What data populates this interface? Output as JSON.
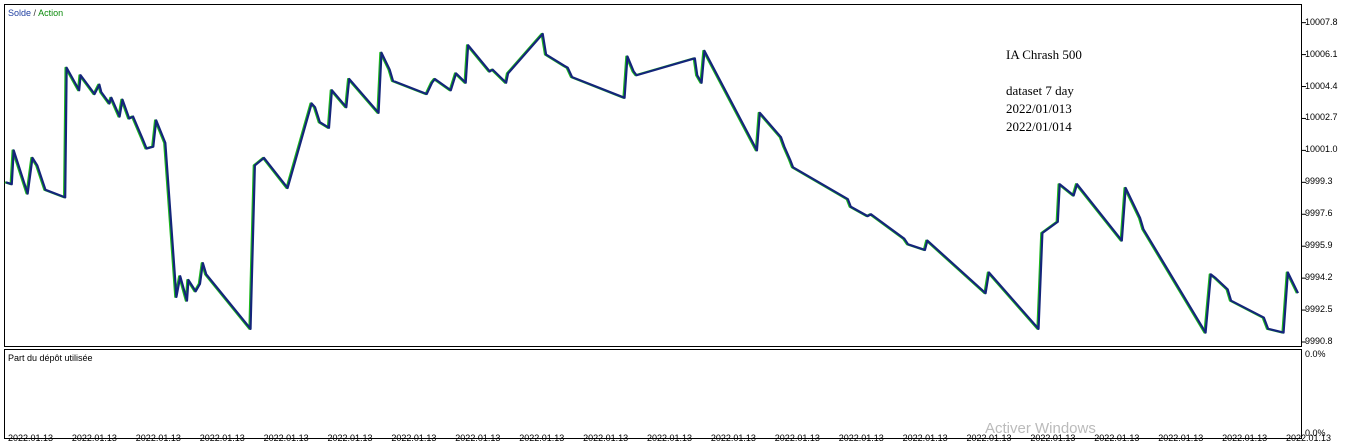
{
  "legend": {
    "series1": "Solde",
    "separator": "/",
    "series2": "Action"
  },
  "subpanel_label": "Part du dépôt utilisée",
  "annotations": [
    "IA Chrash 500",
    "dataset 7 day",
    "2022/01/013",
    "2022/01/014"
  ],
  "watermark": "Activer Windows",
  "colors": {
    "solde": "#14257a",
    "action": "#1db81d"
  },
  "chart_data": [
    {
      "type": "line",
      "title": "",
      "xlabel": "",
      "ylabel": "",
      "ylim": [
        9990.8,
        10008.5
      ],
      "y_ticks": [
        "10007.8",
        "10006.1",
        "10004.4",
        "10002.7",
        "10001.0",
        "9999.3",
        "9997.6",
        "9995.9",
        "9994.2",
        "9992.5",
        "9990.8"
      ],
      "x_ticks": [
        "2022.01.13",
        "2022.01.13",
        "2022.01.13",
        "2022.01.13",
        "2022.01.13",
        "2022.01.13",
        "2022.01.13",
        "2022.01.13",
        "2022.01.13",
        "2022.01.13",
        "2022.01.13",
        "2022.01.13",
        "2022.01.13",
        "2022.01.13",
        "2022.01.13",
        "2022.01.13",
        "2022.01.13",
        "2022.01.13",
        "2022.01.13",
        "2022.01.13",
        "2022.01.13"
      ],
      "legend": "top-left",
      "series": [
        {
          "name": "Solde",
          "x": [
            0,
            1.2,
            1.6,
            4.5,
            5.5,
            6.5,
            8.2,
            12.3,
            12.6,
            15.2,
            15.5,
            18.4,
            19.4,
            19.8,
            21.5,
            21.9,
            23.6,
            24.2,
            25.6,
            26.4,
            28.4,
            29.2,
            30.6,
            31.2,
            33.1,
            35.4,
            36.2,
            37.6,
            37.9,
            39.4,
            40.3,
            40.9,
            41.6,
            50.8,
            51.7,
            53.6,
            58.5,
            63.5,
            64.2,
            65.2,
            67.1,
            67.7,
            70.7,
            71.3,
            77.4,
            78.0,
            79.7,
            80.4,
            87.4,
            88.5,
            89.1,
            92.4,
            93.5,
            95.5,
            96.0,
            100.5,
            101.1,
            103.9,
            104.3,
            111.5,
            112.2,
            116.0,
            116.7,
            117.6,
            128.5,
            129.1,
            130.4,
            131.0,
            143.1,
            143.6,
            144.5,
            145.1,
            156.0,
            156.6,
            161.0,
            161.7,
            162.9,
            163.5,
            174.9,
            175.5,
            179.0,
            179.7,
            186.6,
            187.4,
            190.9,
            191.4,
            203.5,
            204.2,
            214.5,
            215.3,
            218.5,
            218.9,
            221.8,
            222.5,
            231.8,
            232.6,
            235.6,
            236.3,
            249.2,
            250.3,
            251.3,
            253.8,
            254.5,
            261.3,
            262.2,
            265.4,
            266.3,
            268.4
          ],
          "values": [
            9999.3,
            9999.2,
            10001.0,
            9998.7,
            10000.6,
            10000.2,
            9998.9,
            9998.5,
            10005.4,
            10004.2,
            10005.0,
            10004.0,
            10004.5,
            10004.1,
            10003.5,
            10003.8,
            10002.8,
            10003.7,
            10002.7,
            10002.8,
            10001.6,
            10001.1,
            10001.2,
            10002.6,
            10001.4,
            9993.2,
            9994.3,
            9993.0,
            9994.1,
            9993.5,
            9993.9,
            9995.0,
            9994.4,
            9991.5,
            10000.2,
            10000.6,
            9999.0,
            10003.5,
            10003.3,
            10002.5,
            10002.2,
            10004.2,
            10003.3,
            10004.8,
            10003.0,
            10006.2,
            10005.3,
            10004.7,
            10004.0,
            10004.6,
            10004.8,
            10004.2,
            10005.1,
            10004.6,
            10006.6,
            10005.2,
            10005.3,
            10004.6,
            10005.1,
            10007.2,
            10006.1,
            10005.5,
            10005.4,
            10004.9,
            10003.8,
            10006.0,
            10005.2,
            10005.0,
            10005.9,
            10005.0,
            10004.6,
            10006.3,
            10001.0,
            10003.0,
            10001.7,
            10001.2,
            10000.5,
            10000.1,
            9998.4,
            9998.0,
            9997.5,
            9997.6,
            9996.3,
            9996.0,
            9995.7,
            9996.2,
            9993.4,
            9994.5,
            9991.5,
            9996.6,
            9997.2,
            9999.2,
            9998.6,
            9999.2,
            9996.2,
            9999.0,
            9997.4,
            9996.8,
            9991.3,
            9994.4,
            9994.2,
            9993.6,
            9993.0,
            9992.1,
            9991.5,
            9991.3,
            9994.5,
            9993.4
          ]
        }
      ]
    },
    {
      "type": "line",
      "title": "",
      "ylim": [
        0,
        100
      ],
      "y_ticks": [
        "0.0%",
        "0.0%"
      ],
      "series": [
        {
          "name": "Part du dépôt utilisée",
          "values": [
            0,
            0
          ]
        }
      ]
    }
  ]
}
